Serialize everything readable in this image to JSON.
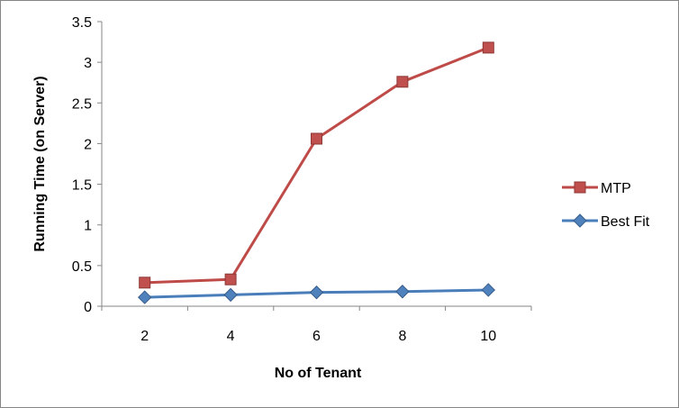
{
  "chart_data": {
    "type": "line",
    "title": "",
    "xlabel": "No of Tenant",
    "ylabel": "Running Time (on Server)",
    "categories": [
      "2",
      "4",
      "6",
      "8",
      "10"
    ],
    "ylim": [
      0,
      3.5
    ],
    "yticks": [
      "0",
      "0.5",
      "1",
      "1.5",
      "2",
      "2.5",
      "3",
      "3.5"
    ],
    "grid": false,
    "legend_position": "right",
    "series": [
      {
        "name": "MTP",
        "values": [
          0.29,
          0.33,
          2.06,
          2.76,
          3.18
        ],
        "color": "#be4b48",
        "marker": "square",
        "marker_color": "#c0504d",
        "marker_edge": "#8c3836"
      },
      {
        "name": "Best Fit",
        "values": [
          0.11,
          0.14,
          0.17,
          0.18,
          0.2
        ],
        "color": "#4a7ebb",
        "marker": "diamond",
        "marker_color": "#4f81bd",
        "marker_edge": "#385d8a"
      }
    ]
  }
}
